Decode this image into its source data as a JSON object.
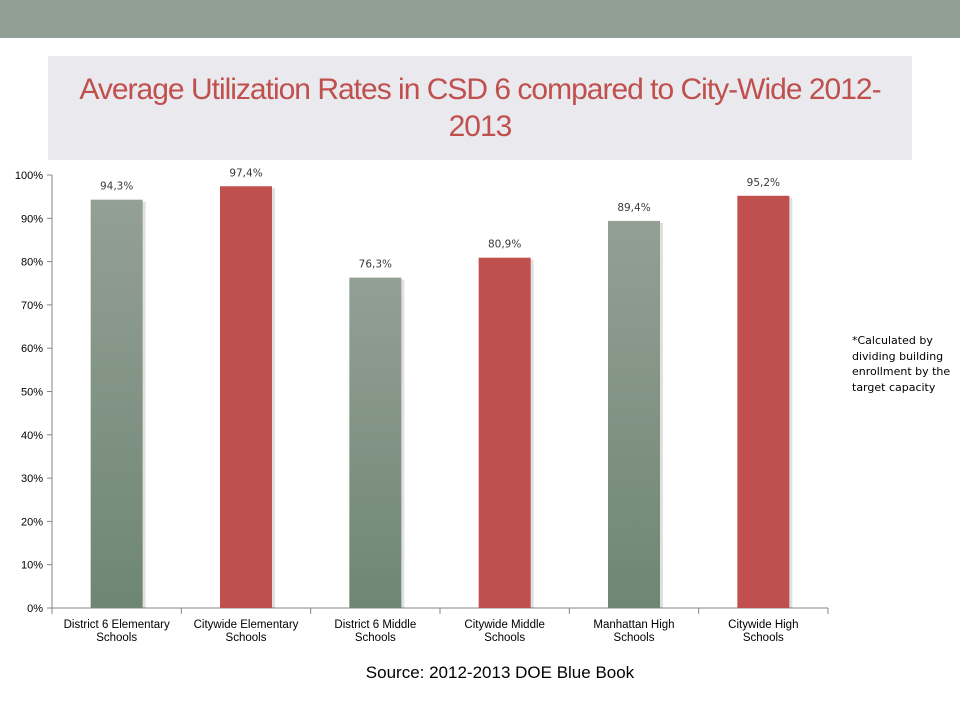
{
  "title": "Average Utilization Rates in CSD 6 compared to City-Wide 2012-2013",
  "footnote": "*Calculated by dividing building enrollment by the target capacity",
  "source": "Source: 2012-2013 DOE Blue Book",
  "colors": {
    "band": "#8f9f93",
    "green_bar_top": "#93a094",
    "green_bar_bottom": "#6f8674",
    "red_bar": "#c0504d",
    "title_bg": "#e9e9ee"
  },
  "chart_data": {
    "type": "bar",
    "title": "",
    "xlabel": "",
    "ylabel": "",
    "ylim": [
      0,
      1
    ],
    "yticks": [
      "0%",
      "10%",
      "20%",
      "30%",
      "40%",
      "50%",
      "60%",
      "70%",
      "80%",
      "90%",
      "100%"
    ],
    "grid": false,
    "categories": [
      [
        "District 6 Elementary",
        "Schools"
      ],
      [
        "Citywide Elementary",
        "Schools"
      ],
      [
        "District 6 Middle",
        "Schools"
      ],
      [
        "Citywide Middle",
        "Schools"
      ],
      [
        "Manhattan High",
        "Schools"
      ],
      [
        "Citywide High",
        "Schools"
      ]
    ],
    "values": [
      0.943,
      0.974,
      0.763,
      0.809,
      0.894,
      0.952
    ],
    "value_labels": [
      "94,3%",
      "97,4%",
      "76,3%",
      "80,9%",
      "89,4%",
      "95,2%"
    ],
    "bar_colors": [
      "green",
      "red",
      "green",
      "red",
      "green",
      "red"
    ]
  }
}
